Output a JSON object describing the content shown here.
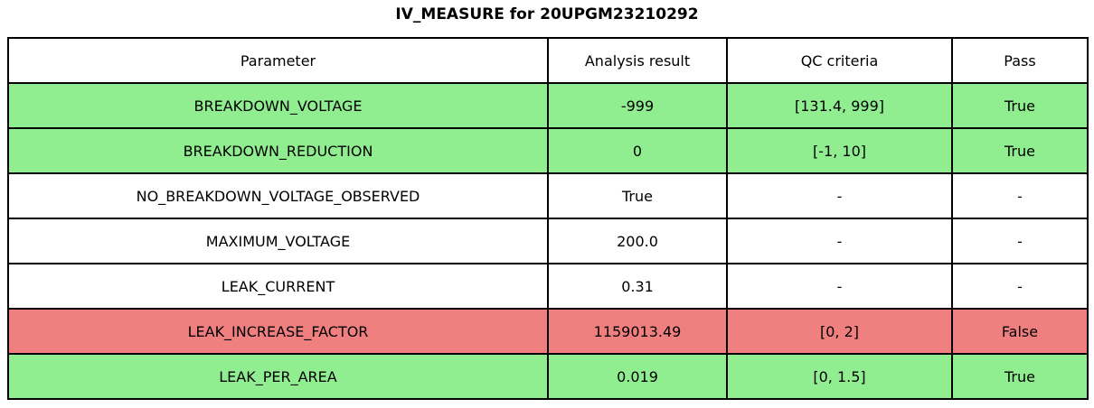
{
  "title": "IV_MEASURE for 20UPGM23210292",
  "colors": {
    "pass_green": "#90EE90",
    "fail_red": "#F08080",
    "neutral_white": "#FFFFFF",
    "border_black": "#000000"
  },
  "table": {
    "headers": [
      "Parameter",
      "Analysis result",
      "QC criteria",
      "Pass"
    ],
    "rows": [
      {
        "parameter": "BREAKDOWN_VOLTAGE",
        "result": "-999",
        "criteria": "[131.4, 999]",
        "pass": "True",
        "status": "pass"
      },
      {
        "parameter": "BREAKDOWN_REDUCTION",
        "result": "0",
        "criteria": "[-1, 10]",
        "pass": "True",
        "status": "pass"
      },
      {
        "parameter": "NO_BREAKDOWN_VOLTAGE_OBSERVED",
        "result": "True",
        "criteria": "-",
        "pass": "-",
        "status": "none"
      },
      {
        "parameter": "MAXIMUM_VOLTAGE",
        "result": "200.0",
        "criteria": "-",
        "pass": "-",
        "status": "none"
      },
      {
        "parameter": "LEAK_CURRENT",
        "result": "0.31",
        "criteria": "-",
        "pass": "-",
        "status": "none"
      },
      {
        "parameter": "LEAK_INCREASE_FACTOR",
        "result": "1159013.49",
        "criteria": "[0, 2]",
        "pass": "False",
        "status": "fail"
      },
      {
        "parameter": "LEAK_PER_AREA",
        "result": "0.019",
        "criteria": "[0, 1.5]",
        "pass": "True",
        "status": "pass"
      }
    ]
  },
  "chart_data": {
    "type": "table",
    "title": "IV_MEASURE for 20UPGM23210292",
    "columns": [
      "Parameter",
      "Analysis result",
      "QC criteria",
      "Pass"
    ],
    "rows": [
      [
        "BREAKDOWN_VOLTAGE",
        "-999",
        "[131.4, 999]",
        "True"
      ],
      [
        "BREAKDOWN_REDUCTION",
        "0",
        "[-1, 10]",
        "True"
      ],
      [
        "NO_BREAKDOWN_VOLTAGE_OBSERVED",
        "True",
        "-",
        "-"
      ],
      [
        "MAXIMUM_VOLTAGE",
        "200.0",
        "-",
        "-"
      ],
      [
        "LEAK_CURRENT",
        "0.31",
        "-",
        "-"
      ],
      [
        "LEAK_INCREASE_FACTOR",
        "1159013.49",
        "[0, 2]",
        "False"
      ],
      [
        "LEAK_PER_AREA",
        "0.019",
        "[0, 1.5]",
        "True"
      ]
    ],
    "row_status": [
      "pass",
      "pass",
      "none",
      "none",
      "none",
      "fail",
      "pass"
    ],
    "layout": {
      "row_fill_pass": "#90EE90",
      "row_fill_fail": "#F08080",
      "row_fill_none": "#FFFFFF",
      "grid": true
    }
  }
}
